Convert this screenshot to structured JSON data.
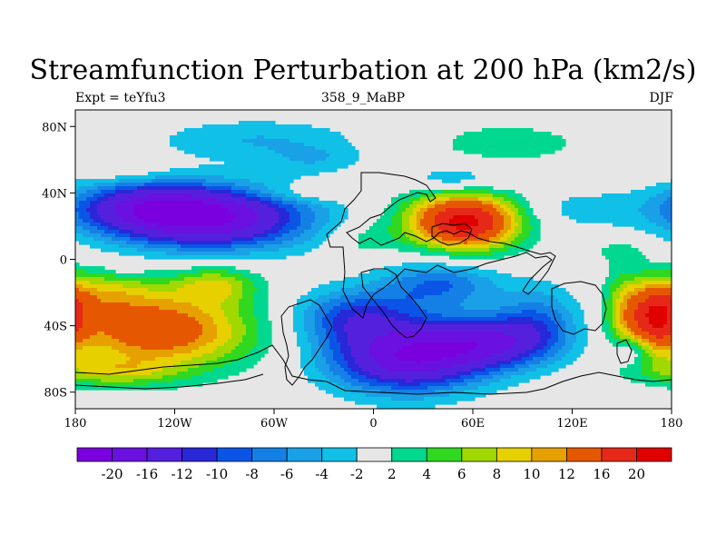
{
  "title": "Streamfunction Perturbation at 200 hPa (km2/s)",
  "subtitle_left": "Expt = teYfu3",
  "subtitle_center": "358_9_MaBP",
  "subtitle_right": "DJF",
  "chart_data": {
    "type": "heatmap",
    "variable": "Streamfunction Perturbation",
    "level": "200 hPa",
    "units": "km2/s",
    "season": "DJF",
    "x_axis": {
      "range": [
        -180,
        180
      ],
      "ticks": [
        -180,
        -120,
        -60,
        0,
        60,
        120,
        180
      ],
      "tick_labels": [
        "180",
        "120W",
        "60W",
        "0",
        "60E",
        "120E",
        "180"
      ]
    },
    "y_axis": {
      "range": [
        -90,
        90
      ],
      "ticks": [
        80,
        40,
        0,
        -40,
        -80
      ],
      "tick_labels": [
        "80N",
        "40N",
        "0",
        "40S",
        "80S"
      ]
    },
    "colorbar": {
      "boundaries": [
        -20,
        -16,
        -12,
        -10,
        -8,
        -6,
        -4,
        -2,
        2,
        4,
        6,
        8,
        10,
        12,
        16,
        20
      ],
      "labels": [
        "-20",
        "-16",
        "-12",
        "-10",
        "-8",
        "-6",
        "-4",
        "-2",
        "2",
        "4",
        "6",
        "8",
        "10",
        "12",
        "16",
        "20"
      ],
      "colors": [
        "#7a00e0",
        "#6a10e0",
        "#5520dd",
        "#2828d8",
        "#0a55e6",
        "#1480e6",
        "#1aa0e6",
        "#10c0e6",
        "#e6e6e6",
        "#00d890",
        "#30d820",
        "#a0d800",
        "#e6d000",
        "#e6a000",
        "#e65800",
        "#e62818",
        "#e00000"
      ]
    },
    "features": [
      {
        "lon": -100,
        "lat": 25,
        "value": -20,
        "sx": 42,
        "sy": 13
      },
      {
        "lon": -140,
        "lat": 32,
        "value": -10,
        "sx": 30,
        "sy": 10
      },
      {
        "lon": 55,
        "lat": 23,
        "value": 22,
        "sx": 24,
        "sy": 12
      },
      {
        "lon": -130,
        "lat": -43,
        "value": 15,
        "sx": 40,
        "sy": 16
      },
      {
        "lon": -165,
        "lat": -20,
        "value": 6,
        "sx": 25,
        "sy": 10
      },
      {
        "lon": -95,
        "lat": -15,
        "value": 7,
        "sx": 18,
        "sy": 8
      },
      {
        "lon": -160,
        "lat": -68,
        "value": 6,
        "sx": 28,
        "sy": 6
      },
      {
        "lon": 20,
        "lat": -60,
        "value": -18,
        "sx": 32,
        "sy": 14
      },
      {
        "lon": 70,
        "lat": -50,
        "value": -14,
        "sx": 28,
        "sy": 11
      },
      {
        "lon": -10,
        "lat": -35,
        "value": -10,
        "sx": 26,
        "sy": 12
      },
      {
        "lon": 40,
        "lat": -15,
        "value": -8,
        "sx": 25,
        "sy": 10
      },
      {
        "lon": 100,
        "lat": -35,
        "value": -6,
        "sx": 18,
        "sy": 14
      },
      {
        "lon": 170,
        "lat": -35,
        "value": 16,
        "sx": 12,
        "sy": 14
      },
      {
        "lon": 150,
        "lat": -30,
        "value": 5,
        "sx": 8,
        "sy": 18
      },
      {
        "lon": -70,
        "lat": 72,
        "value": -4,
        "sx": 45,
        "sy": 9
      },
      {
        "lon": -35,
        "lat": 60,
        "value": -3,
        "sx": 20,
        "sy": 6
      },
      {
        "lon": 50,
        "lat": 48,
        "value": -5,
        "sx": 20,
        "sy": 6
      },
      {
        "lon": 120,
        "lat": 30,
        "value": -3,
        "sx": 35,
        "sy": 9
      },
      {
        "lon": 80,
        "lat": 70,
        "value": 3,
        "sx": 40,
        "sy": 10
      },
      {
        "lon": -150,
        "lat": 55,
        "value": 2.5,
        "sx": 15,
        "sy": 5
      },
      {
        "lon": -40,
        "lat": 40,
        "value": 3,
        "sx": 25,
        "sy": 4
      },
      {
        "lon": -5,
        "lat": 12,
        "value": 3,
        "sx": 14,
        "sy": 8
      },
      {
        "lon": 150,
        "lat": 5,
        "value": 2.5,
        "sx": 15,
        "sy": 5
      },
      {
        "lon": -150,
        "lat": -5,
        "value": -3,
        "sx": 6,
        "sy": 3
      },
      {
        "lon": 155,
        "lat": -55,
        "value": -5,
        "sx": 8,
        "sy": 6
      }
    ]
  }
}
